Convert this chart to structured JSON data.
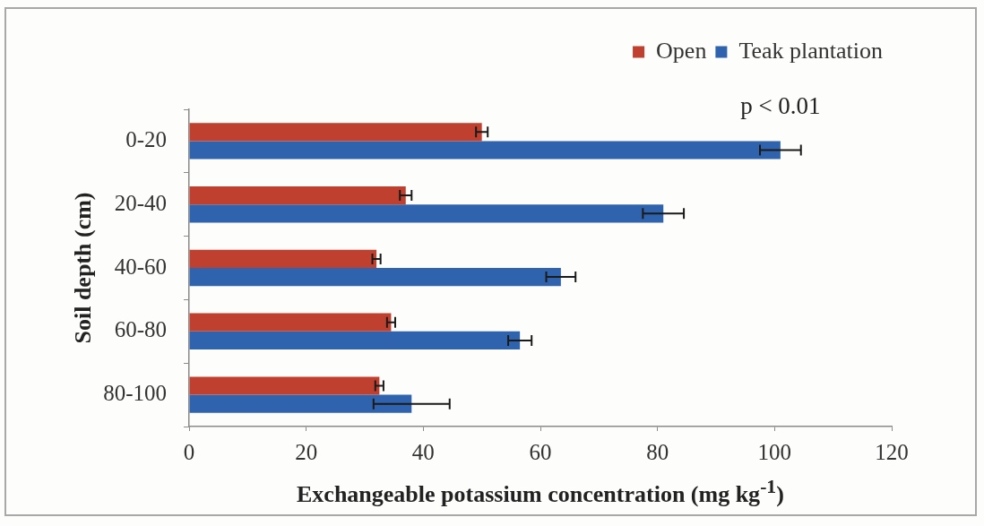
{
  "chart_data": {
    "type": "bar",
    "orientation": "horizontal",
    "xlabel": "Exchangeable potassium concentration (mg kg$^{-1}$)",
    "ylabel": "Soil depth (cm)",
    "categories": [
      "0-20",
      "20-40",
      "40-60",
      "60-80",
      "80-100"
    ],
    "series": [
      {
        "name": "Open",
        "color": "#c0402f",
        "values": [
          50,
          37,
          32,
          34.5,
          32.5
        ],
        "errors": [
          1,
          1,
          0.7,
          0.7,
          0.7
        ]
      },
      {
        "name": "Teak plantation",
        "color": "#2f63ae",
        "values": [
          101,
          81,
          63.5,
          56.5,
          38
        ],
        "errors": [
          3.5,
          3.5,
          2.5,
          2,
          6.5
        ]
      }
    ],
    "xlim": [
      0,
      120
    ],
    "xticks": [
      0,
      20,
      40,
      60,
      80,
      100,
      120
    ],
    "legend": "top right",
    "annotations": [
      {
        "text": "p < 0.01",
        "x": 101,
        "y": "0-20"
      }
    ]
  }
}
